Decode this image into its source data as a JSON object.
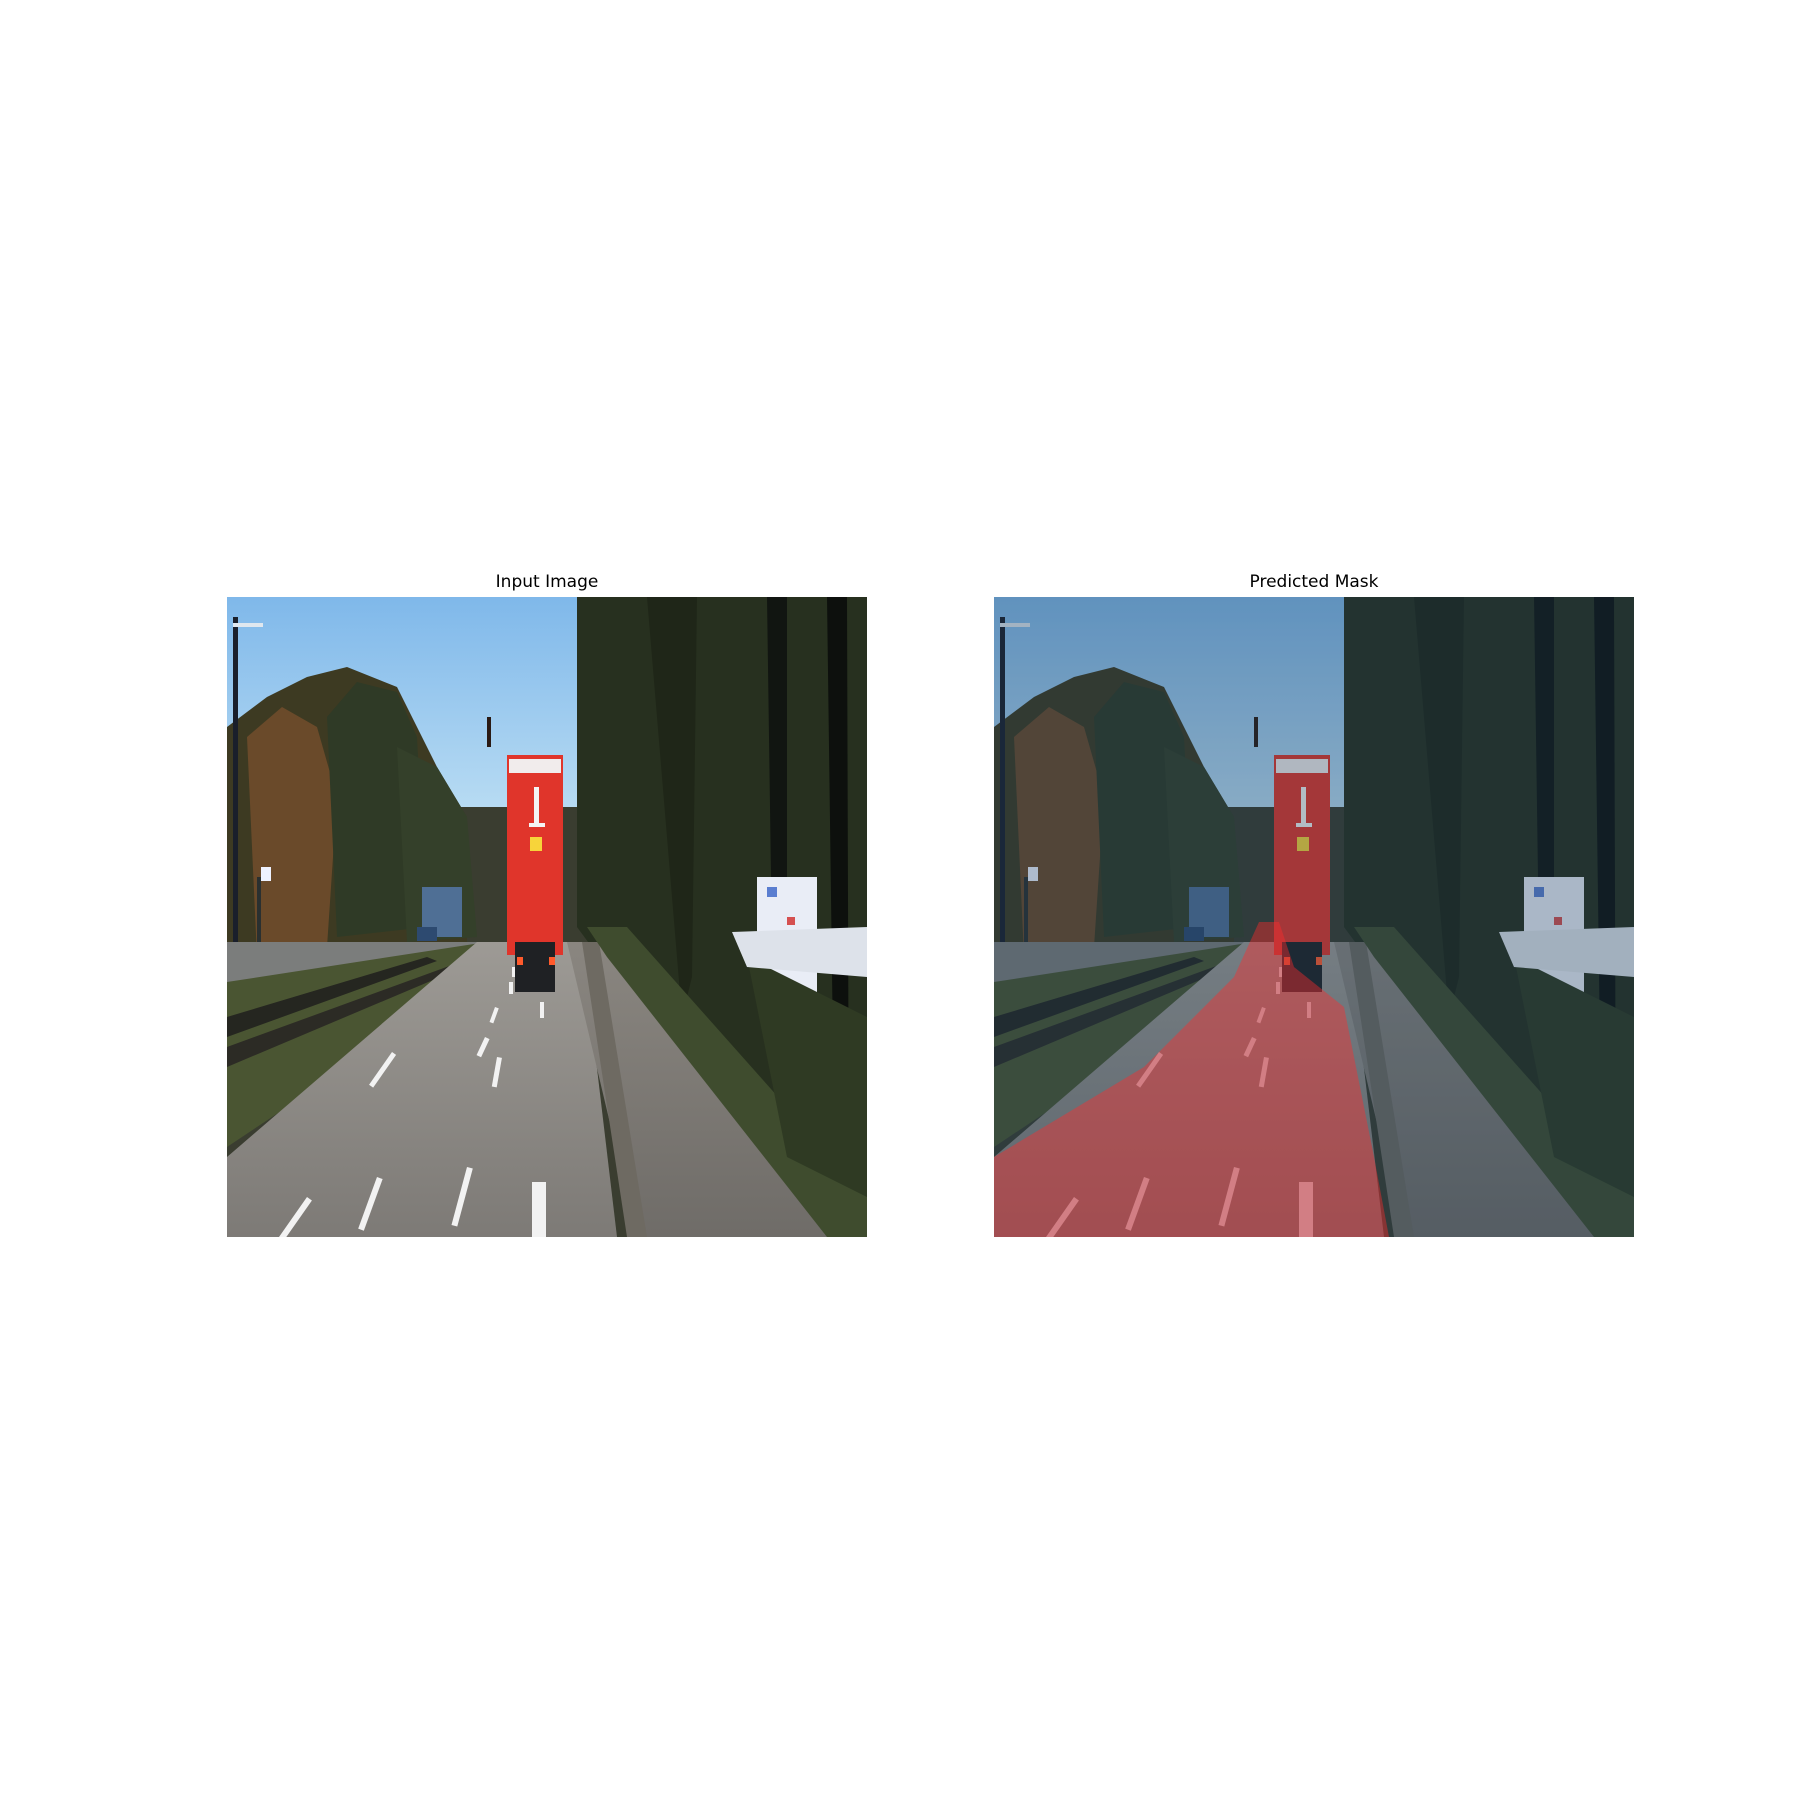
{
  "figure": {
    "panels": [
      {
        "title": "Input Image"
      },
      {
        "title": "Predicted Mask"
      }
    ],
    "colors": {
      "sky": "#8ec3ea",
      "trees": "#2b3322",
      "road": "#8a8680",
      "truck": "#e0352b",
      "mask_overlay": "#ff2a2a"
    }
  }
}
